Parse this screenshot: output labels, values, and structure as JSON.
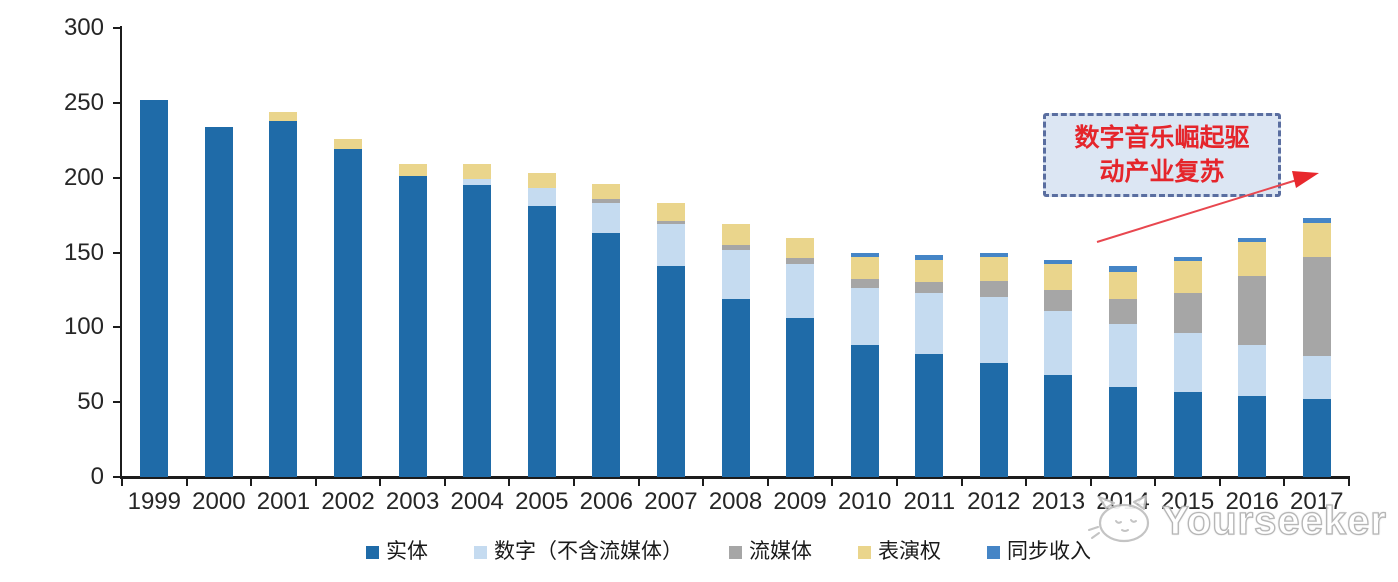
{
  "chart_data": {
    "type": "bar",
    "stacked": true,
    "title": "",
    "categories": [
      "1999",
      "2000",
      "2001",
      "2002",
      "2003",
      "2004",
      "2005",
      "2006",
      "2007",
      "2008",
      "2009",
      "2010",
      "2011",
      "2012",
      "2013",
      "2014",
      "2015",
      "2016",
      "2017"
    ],
    "series": [
      {
        "name": "实体",
        "color": "#1F6BA8",
        "values": [
          252,
          234,
          238,
          219,
          201,
          195,
          181,
          163,
          141,
          119,
          106,
          88,
          82,
          76,
          68,
          60,
          57,
          54,
          52
        ]
      },
      {
        "name": "数字（不含流媒体）",
        "color": "#C5DBF0",
        "values": [
          0,
          0,
          0,
          0,
          0,
          4,
          12,
          20,
          28,
          33,
          36,
          38,
          41,
          44,
          43,
          42,
          39,
          34,
          29
        ]
      },
      {
        "name": "流媒体",
        "color": "#A6A6A6",
        "values": [
          0,
          0,
          0,
          0,
          0,
          0,
          0,
          3,
          2,
          3,
          4,
          6,
          7,
          11,
          14,
          17,
          27,
          46,
          66
        ]
      },
      {
        "name": "表演权",
        "color": "#EAD58C",
        "values": [
          0,
          0,
          6,
          7,
          8,
          10,
          10,
          10,
          12,
          14,
          14,
          15,
          15,
          16,
          17,
          18,
          21,
          23,
          23
        ]
      },
      {
        "name": "同步收入",
        "color": "#4585C6",
        "values": [
          0,
          0,
          0,
          0,
          0,
          0,
          0,
          0,
          0,
          0,
          0,
          3,
          3,
          3,
          3,
          4,
          3,
          3,
          3
        ]
      }
    ],
    "ylim": [
      0,
      300
    ],
    "yticks": [
      0,
      50,
      100,
      150,
      200,
      250,
      300
    ],
    "grid": false,
    "legend_position": "bottom"
  },
  "annotation": {
    "line1": "数字音乐崛起驱",
    "line2": "动产业复苏",
    "fill_color": "#DCE6F3",
    "border_color": "#5A6EA0",
    "text_color": "#E5252B",
    "arrow_color": "#E8474F"
  },
  "watermark": {
    "text": "Yourseeker"
  },
  "axis": {
    "color": "#1C1C1C",
    "label_color": "#262626"
  }
}
